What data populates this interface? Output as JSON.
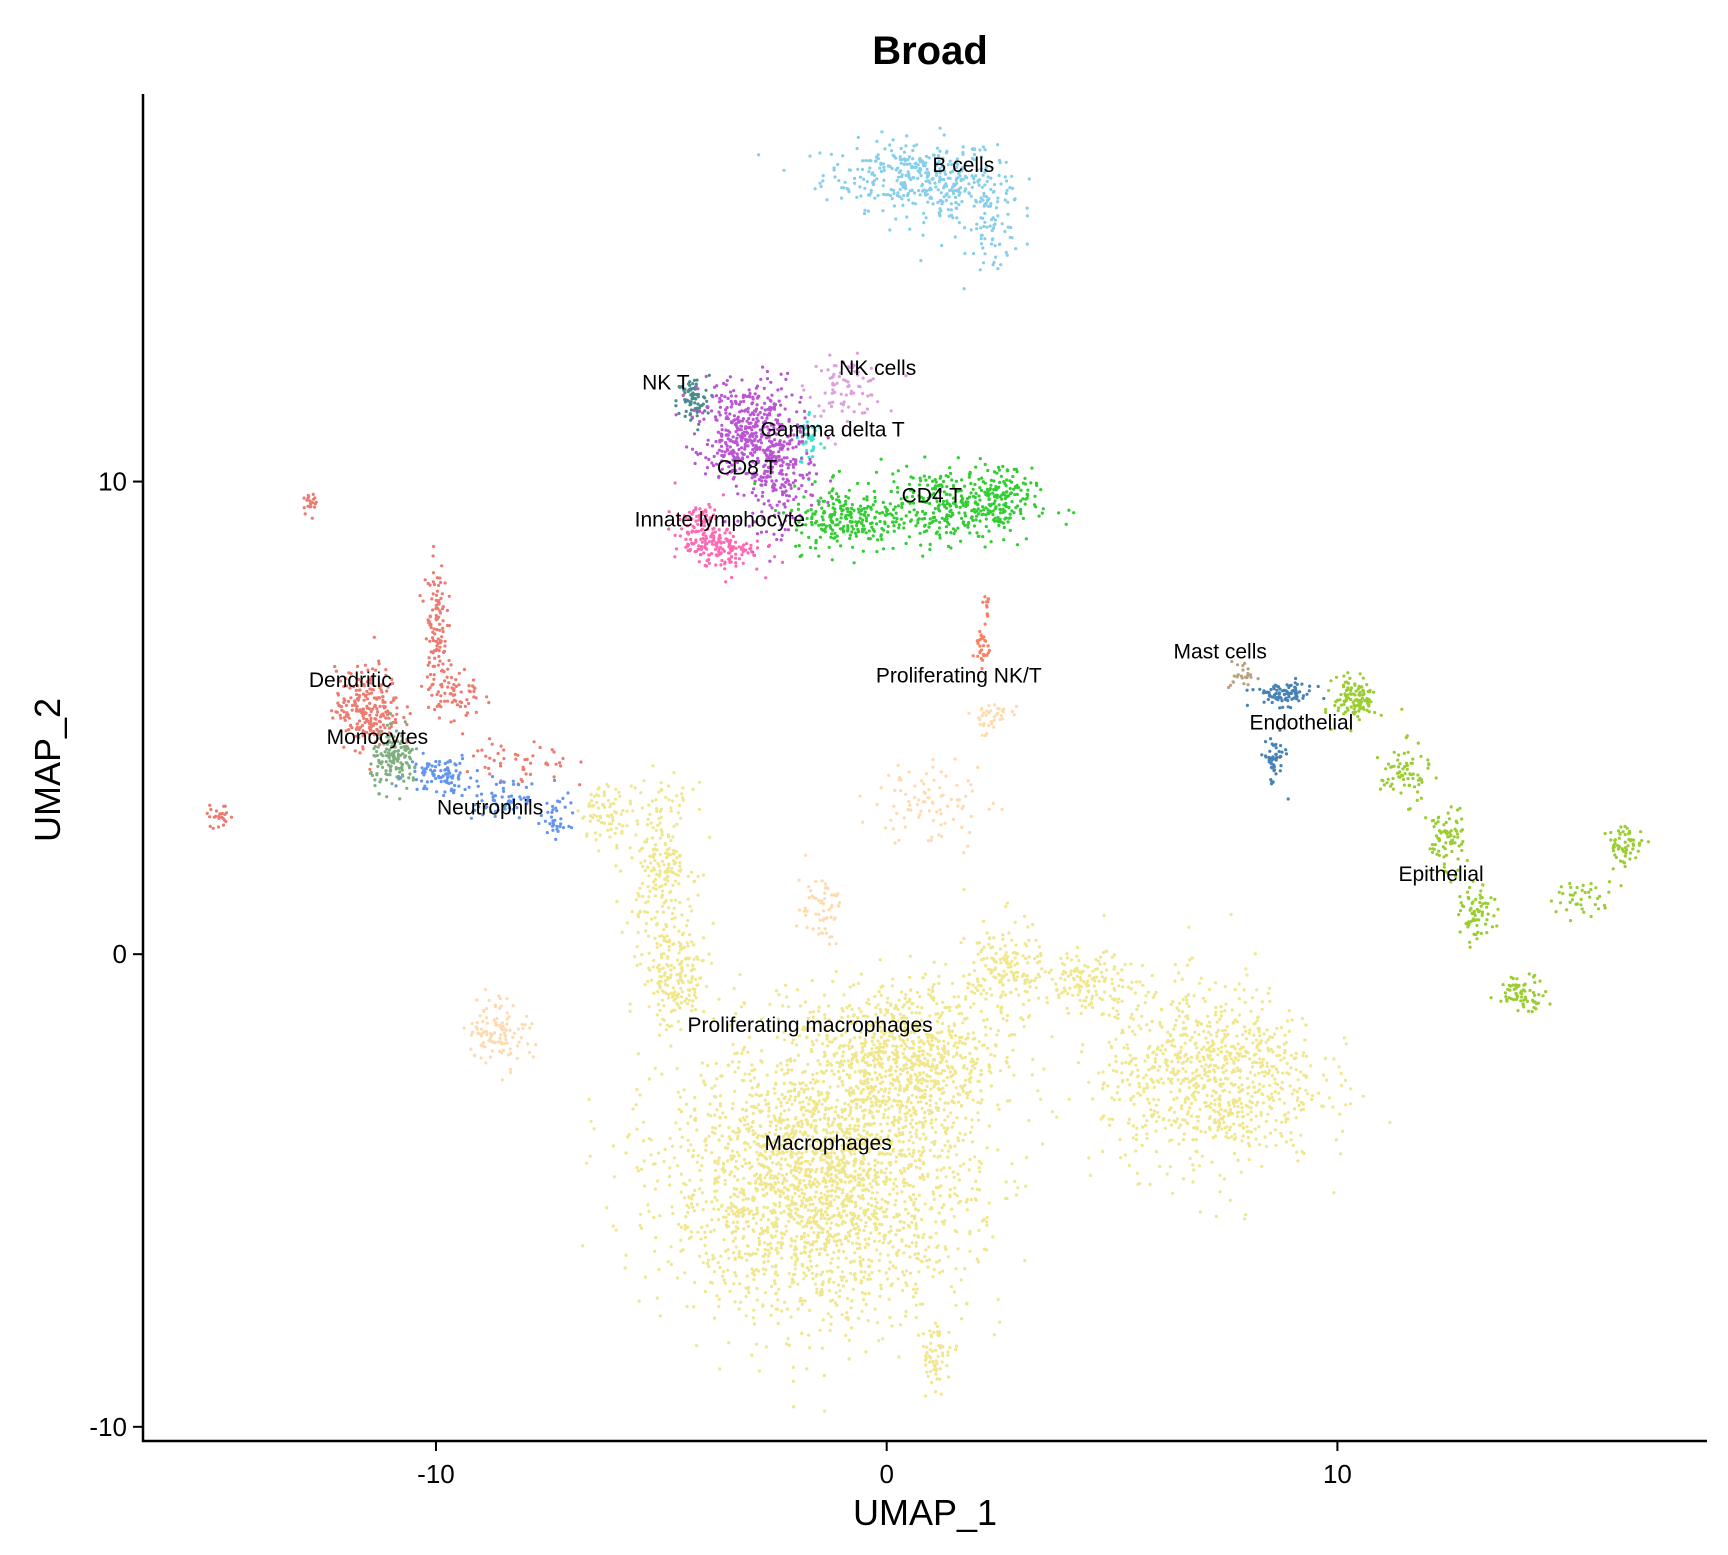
{
  "chart_data": {
    "type": "scatter",
    "title": "Broad",
    "xlabel": "UMAP_1",
    "ylabel": "UMAP_2",
    "xlim": [
      -16.5,
      18.2
    ],
    "ylim": [
      -10.3,
      18.2
    ],
    "xticks": [
      {
        "value": -10,
        "label": "-10"
      },
      {
        "value": 0,
        "label": "0"
      },
      {
        "value": 10,
        "label": "10"
      }
    ],
    "yticks": [
      {
        "value": -10,
        "label": "-10"
      },
      {
        "value": 0,
        "label": "0"
      },
      {
        "value": 10,
        "label": "10"
      }
    ],
    "grid": false,
    "legend": "none",
    "series": [
      {
        "name": "B cells",
        "color": "#87CEEB",
        "label_at": [
          1.7,
          16.7
        ],
        "blobs": [
          [
            0.5,
            16.5,
            1.6,
            0.6,
            260
          ],
          [
            1.5,
            16.1,
            1.2,
            0.7,
            160
          ],
          [
            2.4,
            15.3,
            0.5,
            0.8,
            60
          ]
        ]
      },
      {
        "name": "NK cells",
        "color": "#DDA0DD",
        "label_at": [
          -0.2,
          12.4
        ],
        "blobs": [
          [
            -0.9,
            12.0,
            0.7,
            0.5,
            80
          ]
        ]
      },
      {
        "name": "NK T",
        "color": "#4A8C8C",
        "label_at": [
          -4.9,
          12.1
        ],
        "blobs": [
          [
            -4.3,
            11.7,
            0.3,
            0.45,
            80
          ]
        ]
      },
      {
        "name": "Gamma delta T",
        "color": "#40E0D0",
        "label_at": [
          -1.2,
          11.1
        ],
        "blobs": [
          [
            -1.7,
            10.9,
            0.25,
            0.5,
            40
          ]
        ]
      },
      {
        "name": "CD8 T",
        "color": "#BA55D3",
        "label_at": [
          -3.1,
          10.3
        ],
        "blobs": [
          [
            -3.1,
            11.3,
            0.9,
            0.8,
            260
          ],
          [
            -2.4,
            10.2,
            0.7,
            1.0,
            240
          ],
          [
            -3.3,
            10.6,
            0.6,
            0.6,
            120
          ]
        ]
      },
      {
        "name": "CD4 T",
        "color": "#32CD32",
        "label_at": [
          1.0,
          9.7
        ],
        "blobs": [
          [
            1.3,
            9.5,
            1.6,
            0.65,
            360
          ],
          [
            -0.9,
            9.2,
            1.0,
            0.6,
            220
          ],
          [
            2.5,
            9.7,
            0.5,
            0.6,
            100
          ]
        ]
      },
      {
        "name": "Innate lymphocyte",
        "color": "#FF69B4",
        "label_at": [
          -3.7,
          9.2
        ],
        "blobs": [
          [
            -4.1,
            8.9,
            0.5,
            0.5,
            140
          ],
          [
            -3.5,
            8.5,
            0.6,
            0.35,
            80
          ]
        ]
      },
      {
        "name": "Proliferating NK/T",
        "color": "#FA8064",
        "label_at": [
          1.6,
          5.9
        ],
        "blobs": [
          [
            2.1,
            6.5,
            0.15,
            0.35,
            30
          ],
          [
            2.2,
            7.4,
            0.08,
            0.3,
            12
          ]
        ]
      },
      {
        "name": "Dendritic",
        "color": "#EE7A70",
        "label_at": [
          -11.9,
          5.8
        ],
        "blobs": [
          [
            -11.5,
            5.2,
            0.6,
            0.7,
            240
          ],
          [
            -10.0,
            7.0,
            0.2,
            1.1,
            110
          ],
          [
            -9.6,
            5.5,
            0.5,
            0.5,
            70
          ],
          [
            -12.8,
            9.6,
            0.15,
            0.2,
            20
          ],
          [
            -14.8,
            2.9,
            0.25,
            0.2,
            25
          ],
          [
            -8.2,
            4.0,
            1.0,
            0.5,
            50
          ]
        ]
      },
      {
        "name": "Monocytes",
        "color": "#7FAF7F",
        "label_at": [
          -11.3,
          4.6
        ],
        "blobs": [
          [
            -10.9,
            4.1,
            0.45,
            0.5,
            150
          ]
        ]
      },
      {
        "name": "Neutrophils",
        "color": "#6495ED",
        "label_at": [
          -8.8,
          3.1
        ],
        "blobs": [
          [
            -9.9,
            3.8,
            0.6,
            0.35,
            90
          ],
          [
            -8.5,
            3.3,
            0.8,
            0.3,
            70
          ],
          [
            -7.3,
            2.8,
            0.25,
            0.35,
            30
          ]
        ]
      },
      {
        "name": "Mast cells",
        "color": "#BCA180",
        "label_at": [
          7.4,
          6.4
        ],
        "blobs": [
          [
            7.9,
            5.9,
            0.25,
            0.25,
            25
          ]
        ]
      },
      {
        "name": "Endothelial",
        "color": "#4682B4",
        "label_at": [
          9.2,
          4.9
        ],
        "blobs": [
          [
            8.8,
            5.5,
            0.55,
            0.2,
            90
          ],
          [
            8.6,
            4.1,
            0.2,
            0.45,
            50
          ]
        ]
      },
      {
        "name": "Epithelial",
        "color": "#9ACD32",
        "label_at": [
          12.3,
          1.7
        ],
        "blobs": [
          [
            10.4,
            5.4,
            0.4,
            0.4,
            120
          ],
          [
            11.5,
            3.8,
            0.45,
            0.5,
            70
          ],
          [
            12.4,
            2.4,
            0.35,
            0.6,
            80
          ],
          [
            13.1,
            0.8,
            0.3,
            0.5,
            70
          ],
          [
            14.1,
            -0.8,
            0.45,
            0.3,
            70
          ],
          [
            16.4,
            2.3,
            0.35,
            0.35,
            60
          ],
          [
            15.4,
            1.2,
            0.6,
            0.3,
            40
          ]
        ]
      },
      {
        "name": "Proliferating macrophages",
        "color": "#FFDAB0",
        "label_at": [
          -1.7,
          -1.5
        ],
        "blobs": [
          [
            -8.6,
            -1.6,
            0.6,
            0.6,
            110
          ],
          [
            1.0,
            3.2,
            1.1,
            0.8,
            90
          ],
          [
            -1.5,
            1.0,
            0.4,
            0.6,
            60
          ],
          [
            2.3,
            5.0,
            0.4,
            0.3,
            40
          ]
        ]
      },
      {
        "name": "Macrophages",
        "color": "#F0E68C",
        "label_at": [
          -1.3,
          -4.0
        ],
        "blobs": [
          [
            -1.5,
            -4.8,
            2.8,
            2.4,
            2400
          ],
          [
            0.4,
            -2.2,
            1.8,
            1.4,
            800
          ],
          [
            7.2,
            -2.6,
            2.0,
            1.6,
            900
          ],
          [
            -5.0,
            2.0,
            0.6,
            1.3,
            220
          ],
          [
            -4.7,
            -0.5,
            0.6,
            1.0,
            200
          ],
          [
            2.6,
            -0.4,
            0.7,
            0.9,
            170
          ],
          [
            4.5,
            -0.6,
            0.9,
            0.5,
            150
          ],
          [
            1.1,
            -8.5,
            0.3,
            0.6,
            60
          ],
          [
            -6.2,
            3.0,
            0.5,
            0.5,
            80
          ]
        ]
      }
    ]
  }
}
